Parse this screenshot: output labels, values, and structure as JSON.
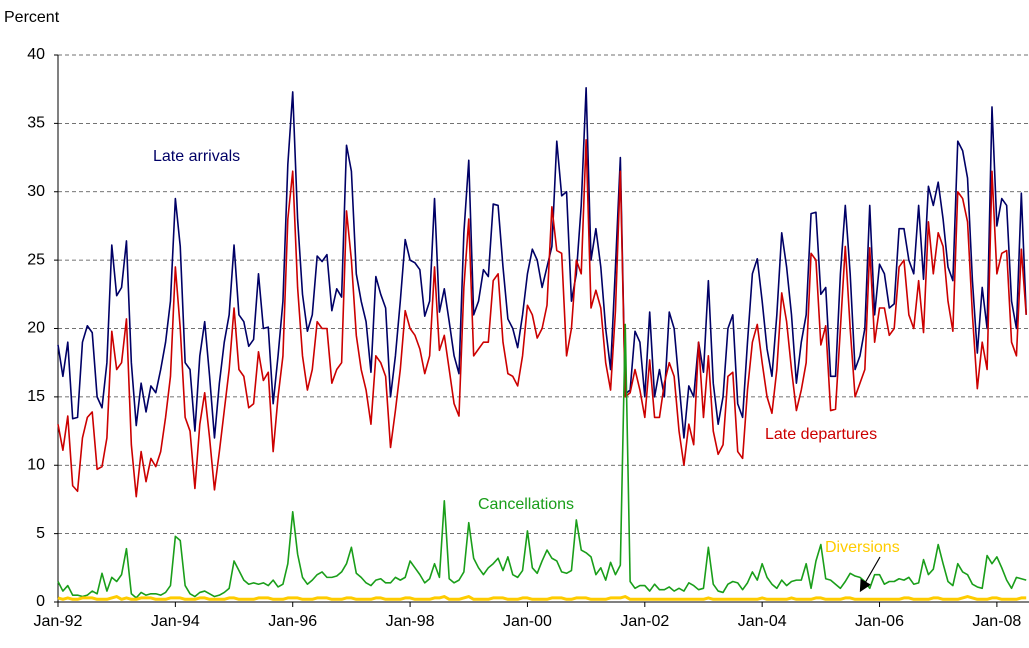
{
  "chart_data": {
    "type": "line",
    "y_label": "Percent",
    "categories": [
      "Jan-92",
      null,
      null,
      null,
      null,
      null,
      null,
      null,
      null,
      null,
      null,
      null,
      null,
      null,
      null,
      null,
      null,
      null,
      null,
      null,
      null,
      null,
      null,
      null,
      "Jan-94",
      null,
      null,
      null,
      null,
      null,
      null,
      null,
      null,
      null,
      null,
      null,
      null,
      null,
      null,
      null,
      null,
      null,
      null,
      null,
      null,
      null,
      null,
      null,
      "Jan-96",
      null,
      null,
      null,
      null,
      null,
      null,
      null,
      null,
      null,
      null,
      null,
      null,
      null,
      null,
      null,
      null,
      null,
      null,
      null,
      null,
      null,
      null,
      null,
      "Jan-98",
      null,
      null,
      null,
      null,
      null,
      null,
      null,
      null,
      null,
      null,
      null,
      null,
      null,
      null,
      null,
      null,
      null,
      null,
      null,
      null,
      null,
      null,
      null,
      "Jan-00",
      null,
      null,
      null,
      null,
      null,
      null,
      null,
      null,
      null,
      null,
      null,
      null,
      null,
      null,
      null,
      null,
      null,
      null,
      null,
      null,
      null,
      null,
      null,
      "Jan-02",
      null,
      null,
      null,
      null,
      null,
      null,
      null,
      null,
      null,
      null,
      null,
      null,
      null,
      null,
      null,
      null,
      null,
      null,
      null,
      null,
      null,
      null,
      null,
      "Jan-04",
      null,
      null,
      null,
      null,
      null,
      null,
      null,
      null,
      null,
      null,
      null,
      null,
      null,
      null,
      null,
      null,
      null,
      null,
      null,
      null,
      null,
      null,
      null,
      "Jan-06",
      null,
      null,
      null,
      null,
      null,
      null,
      null,
      null,
      null,
      null,
      null,
      null,
      null,
      null,
      null,
      null,
      null,
      null,
      null,
      null,
      null,
      null,
      null,
      "Jan-08",
      null,
      null,
      null,
      null,
      null,
      null
    ],
    "series": [
      {
        "name": "Late arrivals",
        "color": "#000066",
        "values": [
          18.8,
          16.5,
          19.0,
          13.4,
          13.5,
          19.0,
          20.2,
          19.7,
          15.0,
          14.2,
          17.5,
          26.1,
          22.4,
          23.0,
          26.4,
          17.5,
          12.9,
          16.0,
          13.9,
          15.8,
          15.3,
          17.0,
          19.0,
          22.0,
          29.5,
          26.0,
          17.5,
          17.0,
          12.5,
          18.0,
          20.5,
          16.5,
          12.0,
          16.0,
          19.0,
          21.0,
          26.1,
          21.0,
          20.5,
          18.7,
          19.2,
          24.0,
          20.0,
          20.1,
          14.5,
          18.0,
          22.0,
          32.0,
          37.3,
          28.0,
          22.5,
          19.8,
          21.0,
          25.3,
          24.9,
          25.4,
          21.3,
          22.9,
          22.3,
          33.4,
          31.5,
          24.0,
          22.0,
          20.5,
          16.8,
          23.8,
          22.5,
          21.5,
          15.0,
          18.0,
          22.0,
          26.5,
          25.0,
          24.8,
          24.3,
          20.9,
          22.0,
          29.5,
          21.2,
          22.9,
          20.5,
          18.0,
          16.7,
          27.0,
          32.3,
          21.0,
          22.0,
          24.3,
          23.8,
          29.1,
          29.0,
          24.5,
          20.7,
          20.0,
          18.6,
          21.0,
          24.0,
          25.8,
          25.0,
          23.0,
          24.5,
          26.0,
          33.7,
          29.7,
          30.0,
          22.0,
          24.0,
          29.0,
          37.6,
          25.0,
          27.3,
          24.5,
          20.0,
          17.0,
          24.5,
          32.5,
          15.2,
          15.5,
          19.8,
          19.0,
          15.0,
          21.2,
          15.0,
          17.0,
          15.0,
          21.2,
          20.0,
          16.0,
          12.0,
          15.8,
          15.0,
          19.0,
          16.8,
          23.5,
          16.0,
          13.0,
          15.0,
          20.0,
          21.0,
          14.5,
          13.5,
          19.0,
          24.0,
          25.1,
          22.0,
          18.5,
          16.5,
          21.0,
          27.0,
          24.5,
          21.0,
          16.0,
          19.0,
          21.0,
          28.4,
          28.5,
          22.5,
          23.0,
          16.5,
          16.5,
          24.0,
          29.0,
          24.0,
          17.0,
          18.0,
          20.0,
          29.0,
          21.0,
          24.7,
          24.0,
          21.5,
          21.8,
          27.3,
          27.3,
          25.0,
          24.0,
          29.0,
          23.6,
          30.4,
          29.0,
          30.7,
          28.0,
          24.5,
          23.5,
          33.7,
          33.0,
          31.0,
          23.5,
          18.2,
          23.0,
          20.0,
          36.2,
          27.5,
          29.5,
          29.0,
          22.0,
          20.0,
          29.9,
          21.0
        ]
      },
      {
        "name": "Late departures",
        "color": "#cc0000",
        "values": [
          13.0,
          11.1,
          13.6,
          8.5,
          8.1,
          12.0,
          13.5,
          13.9,
          9.7,
          9.9,
          12.0,
          19.8,
          17.0,
          17.5,
          20.7,
          11.5,
          7.7,
          11.0,
          8.8,
          10.5,
          9.9,
          11.0,
          13.5,
          16.5,
          24.5,
          20.0,
          13.5,
          12.5,
          8.3,
          13.0,
          15.3,
          12.0,
          8.2,
          11.0,
          14.0,
          17.0,
          21.5,
          17.0,
          16.5,
          14.2,
          14.5,
          18.3,
          16.2,
          16.8,
          11.0,
          15.0,
          18.0,
          28.0,
          31.5,
          23.0,
          18.0,
          15.5,
          17.0,
          20.5,
          20.0,
          20.0,
          16.0,
          17.0,
          17.5,
          28.6,
          25.0,
          19.5,
          17.0,
          15.5,
          13.0,
          18.0,
          17.5,
          16.5,
          11.3,
          14.0,
          17.0,
          21.3,
          20.0,
          19.5,
          18.5,
          16.7,
          18.0,
          24.5,
          18.4,
          19.5,
          17.0,
          14.5,
          13.6,
          23.0,
          28.0,
          18.0,
          18.5,
          19.0,
          19.0,
          23.5,
          24.0,
          19.0,
          16.7,
          16.5,
          15.8,
          18.0,
          21.7,
          21.0,
          19.3,
          20.0,
          21.7,
          28.9,
          25.7,
          25.5,
          18.0,
          20.0,
          25.0,
          24.0,
          33.8,
          21.5,
          22.8,
          21.5,
          17.5,
          15.5,
          21.3,
          31.5,
          15.0,
          15.3,
          17.0,
          15.5,
          13.5,
          17.7,
          13.5,
          13.5,
          16.0,
          17.5,
          16.5,
          12.5,
          10.0,
          13.0,
          11.5,
          19.0,
          13.5,
          18.0,
          12.5,
          10.8,
          11.5,
          16.5,
          16.8,
          11.0,
          10.5,
          15.5,
          19.0,
          20.3,
          17.5,
          15.0,
          13.8,
          17.0,
          22.6,
          20.5,
          17.0,
          14.0,
          15.5,
          17.5,
          25.5,
          25.0,
          18.8,
          20.2,
          14.0,
          14.1,
          20.0,
          26.0,
          20.0,
          15.0,
          16.0,
          17.0,
          25.9,
          19.0,
          21.5,
          21.5,
          19.5,
          20.0,
          24.5,
          25.0,
          21.0,
          20.0,
          23.5,
          19.7,
          27.8,
          24.0,
          27.0,
          26.0,
          22.0,
          19.8,
          30.0,
          29.5,
          27.8,
          21.0,
          15.6,
          19.0,
          17.0,
          31.5,
          24.0,
          25.5,
          25.7,
          19.0,
          18.0,
          25.8,
          21.0
        ]
      },
      {
        "name": "Cancellations",
        "color": "#1a9e1a",
        "values": [
          1.5,
          0.8,
          1.2,
          0.5,
          0.5,
          0.4,
          0.5,
          0.8,
          0.6,
          2.1,
          0.8,
          1.8,
          1.5,
          2.0,
          3.9,
          0.6,
          0.3,
          0.7,
          0.5,
          0.6,
          0.6,
          0.5,
          0.7,
          1.2,
          4.8,
          4.5,
          1.2,
          0.6,
          0.4,
          0.7,
          0.8,
          0.6,
          0.4,
          0.5,
          0.7,
          1.0,
          3.0,
          2.3,
          1.6,
          1.3,
          1.4,
          1.3,
          1.4,
          1.2,
          1.6,
          1.1,
          1.3,
          2.8,
          6.6,
          3.5,
          1.8,
          1.3,
          1.6,
          2.0,
          2.2,
          1.8,
          1.8,
          1.9,
          2.2,
          2.8,
          4.0,
          2.1,
          1.8,
          1.4,
          1.2,
          1.6,
          1.7,
          1.4,
          1.4,
          1.8,
          1.6,
          1.8,
          3.0,
          2.5,
          2.0,
          1.4,
          1.7,
          2.8,
          1.8,
          7.4,
          1.7,
          1.4,
          1.6,
          2.2,
          5.8,
          3.2,
          2.5,
          2.0,
          2.5,
          2.8,
          3.2,
          2.3,
          3.3,
          2.0,
          1.8,
          2.3,
          5.2,
          2.5,
          2.1,
          3.0,
          3.8,
          3.2,
          3.0,
          2.2,
          2.1,
          2.3,
          6.0,
          3.8,
          3.6,
          3.3,
          2.0,
          2.5,
          1.6,
          2.9,
          2.0,
          2.7,
          20.3,
          1.5,
          1.0,
          1.2,
          1.2,
          0.8,
          1.3,
          0.9,
          0.9,
          1.1,
          0.8,
          1.0,
          0.8,
          1.4,
          1.2,
          0.9,
          1.0,
          4.0,
          1.3,
          0.8,
          0.7,
          1.3,
          1.5,
          1.4,
          0.9,
          1.4,
          2.2,
          1.6,
          2.8,
          1.8,
          1.3,
          1.0,
          1.6,
          1.2,
          1.5,
          1.6,
          1.6,
          2.8,
          1.0,
          3.0,
          4.2,
          1.7,
          1.6,
          1.3,
          1.0,
          1.5,
          2.1,
          1.9,
          1.8,
          1.5,
          1.0,
          2.0,
          2.0,
          1.3,
          1.5,
          1.5,
          1.7,
          1.6,
          1.8,
          1.3,
          1.4,
          3.1,
          2.0,
          2.4,
          4.2,
          2.8,
          1.5,
          1.2,
          2.8,
          2.2,
          2.0,
          1.3,
          1.1,
          1.0,
          3.4,
          2.8,
          3.3,
          2.5,
          1.6,
          1.0,
          1.8,
          1.7,
          1.6
        ]
      },
      {
        "name": "Diversions",
        "color": "#ffcc00",
        "values": [
          0.3,
          0.2,
          0.3,
          0.2,
          0.2,
          0.3,
          0.3,
          0.3,
          0.2,
          0.2,
          0.2,
          0.3,
          0.4,
          0.2,
          0.3,
          0.2,
          0.2,
          0.3,
          0.3,
          0.3,
          0.2,
          0.2,
          0.2,
          0.3,
          0.3,
          0.3,
          0.2,
          0.2,
          0.2,
          0.3,
          0.3,
          0.2,
          0.2,
          0.2,
          0.2,
          0.3,
          0.3,
          0.2,
          0.2,
          0.2,
          0.2,
          0.3,
          0.3,
          0.3,
          0.2,
          0.2,
          0.2,
          0.3,
          0.3,
          0.3,
          0.2,
          0.2,
          0.2,
          0.3,
          0.3,
          0.3,
          0.2,
          0.2,
          0.2,
          0.3,
          0.3,
          0.2,
          0.2,
          0.2,
          0.2,
          0.3,
          0.3,
          0.2,
          0.2,
          0.2,
          0.2,
          0.3,
          0.3,
          0.2,
          0.2,
          0.2,
          0.2,
          0.3,
          0.3,
          0.4,
          0.2,
          0.2,
          0.2,
          0.3,
          0.4,
          0.2,
          0.2,
          0.2,
          0.2,
          0.3,
          0.3,
          0.3,
          0.2,
          0.2,
          0.2,
          0.3,
          0.3,
          0.2,
          0.2,
          0.2,
          0.2,
          0.3,
          0.3,
          0.3,
          0.2,
          0.2,
          0.3,
          0.3,
          0.3,
          0.2,
          0.2,
          0.2,
          0.2,
          0.3,
          0.3,
          0.3,
          0.4,
          0.2,
          0.2,
          0.2,
          0.2,
          0.2,
          0.2,
          0.2,
          0.2,
          0.2,
          0.2,
          0.2,
          0.2,
          0.2,
          0.2,
          0.2,
          0.2,
          0.3,
          0.2,
          0.2,
          0.2,
          0.2,
          0.2,
          0.2,
          0.2,
          0.2,
          0.2,
          0.2,
          0.3,
          0.2,
          0.2,
          0.2,
          0.2,
          0.2,
          0.3,
          0.2,
          0.2,
          0.2,
          0.2,
          0.3,
          0.3,
          0.2,
          0.2,
          0.2,
          0.2,
          0.3,
          0.3,
          0.2,
          0.2,
          0.2,
          0.2,
          0.2,
          0.2,
          0.2,
          0.2,
          0.2,
          0.2,
          0.3,
          0.3,
          0.2,
          0.2,
          0.2,
          0.2,
          0.3,
          0.3,
          0.2,
          0.2,
          0.2,
          0.2,
          0.3,
          0.4,
          0.3,
          0.2,
          0.2,
          0.2,
          0.3,
          0.3,
          0.2,
          0.2,
          0.2,
          0.2,
          0.3,
          0.3
        ]
      }
    ],
    "ylim": [
      0,
      40
    ],
    "yticks": [
      0,
      5,
      10,
      15,
      20,
      25,
      30,
      35,
      40
    ],
    "grid": true
  }
}
